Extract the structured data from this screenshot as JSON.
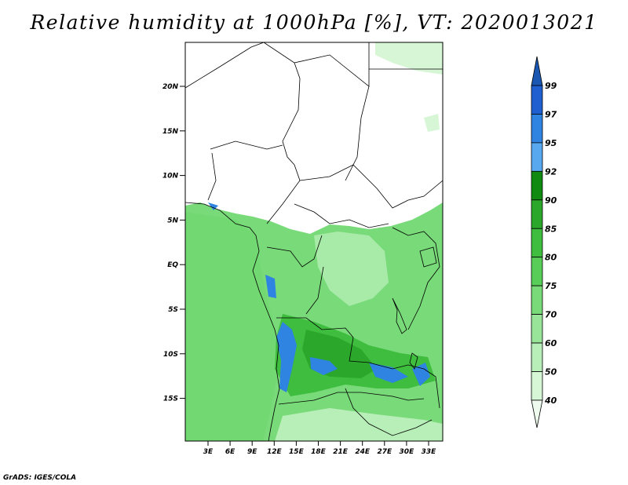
{
  "title": "Relative humidity at 1000hPa [%], VT: 2020013021",
  "footer": "GrADS: IGES/COLA",
  "map": {
    "lat_ticks": [
      "20N",
      "15N",
      "10N",
      "5N",
      "EQ",
      "5S",
      "10S",
      "15S"
    ],
    "lon_ticks": [
      "3E",
      "6E",
      "9E",
      "12E",
      "15E",
      "18E",
      "21E",
      "24E",
      "27E",
      "30E",
      "33E"
    ]
  },
  "colorbar": {
    "levels": [
      "99",
      "97",
      "95",
      "92",
      "90",
      "85",
      "80",
      "75",
      "70",
      "60",
      "50",
      "40"
    ],
    "colors": [
      "#1f5fd0",
      "#2e84e0",
      "#57a8ef",
      "#108a10",
      "#2ba82b",
      "#3fbd3f",
      "#58cd58",
      "#78da78",
      "#98e498",
      "#b8eeb8",
      "#d6f6d6",
      "#eefbee"
    ],
    "top_color": "#1a57b3"
  }
}
